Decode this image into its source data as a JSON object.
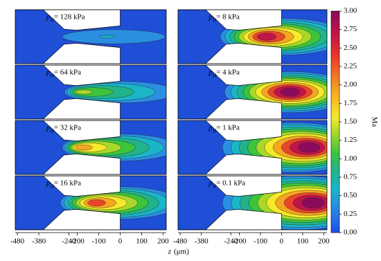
{
  "chart_data": {
    "type": "contour",
    "panels": [
      {
        "symbol": "p",
        "subscript": "o",
        "text": "= 128 kPa"
      },
      {
        "symbol": "p",
        "subscript": "o",
        "text": "= 64 kPa"
      },
      {
        "symbol": "p",
        "subscript": "o",
        "text": "= 32 kPa"
      },
      {
        "symbol": "p",
        "subscript": "o",
        "text": "= 16 kPa"
      },
      {
        "symbol": "p",
        "subscript": "o",
        "text": "= 8 kPa"
      },
      {
        "symbol": "p",
        "subscript": "o",
        "text": "= 4 kPa"
      },
      {
        "symbol": "p",
        "subscript": "o",
        "text": "= 1 kPa"
      },
      {
        "symbol": "p",
        "subscript": "o",
        "text": "= 0.1 kPa"
      }
    ],
    "xlim": [
      -490,
      215
    ],
    "xticks": [
      -480,
      -380,
      -240,
      -200,
      -100,
      0,
      100,
      200
    ],
    "xlabel_symbol": "z",
    "xlabel_unit": "(μm)",
    "colorbar": {
      "label": "Ma",
      "lim": [
        0,
        3
      ],
      "ticks": [
        {
          "value": 0,
          "label": "0.00"
        },
        {
          "value": 0.25,
          "label": "0.25"
        },
        {
          "value": 0.5,
          "label": "0.50"
        },
        {
          "value": 0.75,
          "label": "0.75"
        },
        {
          "value": 1,
          "label": "1.00"
        },
        {
          "value": 1.25,
          "label": "1.25"
        },
        {
          "value": 1.5,
          "label": "1.50"
        },
        {
          "value": 1.75,
          "label": "1.75"
        },
        {
          "value": 2,
          "label": "2.00"
        },
        {
          "value": 2.25,
          "label": "2.25"
        },
        {
          "value": 2.5,
          "label": "2.50"
        },
        {
          "value": 2.75,
          "label": "2.75"
        },
        {
          "value": 3,
          "label": "3.00"
        }
      ]
    }
  }
}
